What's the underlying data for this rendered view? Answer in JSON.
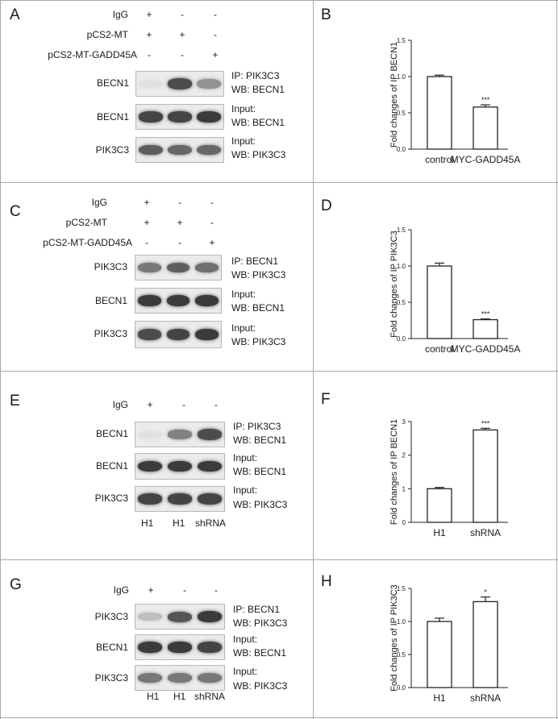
{
  "panels": [
    {
      "letter": "A",
      "conditions": [
        {
          "label": "IgG",
          "signs": [
            "+",
            "-",
            "-"
          ]
        },
        {
          "label": "pCS2-MT",
          "signs": [
            "+",
            "+",
            "-"
          ]
        },
        {
          "label": "pCS2-MT-GADD45A",
          "signs": [
            "-",
            "-",
            "+"
          ]
        }
      ],
      "lane_labels": [],
      "blots": [
        {
          "protein": "BECN1",
          "note1": "IP: PIK3C3",
          "note2": "WB: BECN1",
          "bands": [
            0.0,
            0.85,
            0.45
          ]
        },
        {
          "protein": "BECN1",
          "note1": "Input:",
          "note2": "WB: BECN1",
          "bands": [
            0.9,
            0.9,
            0.95
          ]
        },
        {
          "protein": "PIK3C3",
          "note1": "Input:",
          "note2": "WB: PIK3C3",
          "bands": [
            0.75,
            0.7,
            0.7
          ]
        }
      ]
    },
    {
      "letter": "C",
      "conditions": [
        {
          "label": "IgG",
          "signs": [
            "+",
            "-",
            "-"
          ]
        },
        {
          "label": "pCS2-MT",
          "signs": [
            "+",
            "+",
            "-"
          ]
        },
        {
          "label": "pCS2-MT-GADD45A",
          "signs": [
            "-",
            "-",
            "+"
          ]
        }
      ],
      "lane_labels": [],
      "blots": [
        {
          "protein": "PIK3C3",
          "note1": "IP: BECN1",
          "note2": "WB: PIK3C3",
          "bands": [
            0.6,
            0.75,
            0.65
          ]
        },
        {
          "protein": "BECN1",
          "note1": "Input:",
          "note2": "WB: BECN1",
          "bands": [
            0.95,
            0.95,
            0.95
          ]
        },
        {
          "protein": "PIK3C3",
          "note1": "Input:",
          "note2": "WB: PIK3C3",
          "bands": [
            0.85,
            0.9,
            0.95
          ]
        }
      ]
    },
    {
      "letter": "E",
      "conditions": [
        {
          "label": "IgG",
          "signs": [
            "+",
            "-",
            "-"
          ]
        }
      ],
      "lane_labels": [
        "H1",
        "H1",
        "shRNA"
      ],
      "blots": [
        {
          "protein": "BECN1",
          "note1": "IP: PIK3C3",
          "note2": "WB: BECN1",
          "bands": [
            0.0,
            0.55,
            0.85
          ]
        },
        {
          "protein": "BECN1",
          "note1": "Input:",
          "note2": "WB: BECN1",
          "bands": [
            0.95,
            0.95,
            0.95
          ]
        },
        {
          "protein": "PIK3C3",
          "note1": "Input:",
          "note2": "WB: PIK3C3",
          "bands": [
            0.9,
            0.9,
            0.9
          ]
        }
      ]
    },
    {
      "letter": "G",
      "conditions": [
        {
          "label": "IgG",
          "signs": [
            "+",
            "-",
            "-"
          ]
        }
      ],
      "lane_labels": [
        "H1",
        "H1",
        "shRNA"
      ],
      "blots": [
        {
          "protein": "PIK3C3",
          "note1": "IP: BECN1",
          "note2": "WB: PIK3C3",
          "bands": [
            0.2,
            0.8,
            0.95
          ]
        },
        {
          "protein": "BECN1",
          "note1": "Input:",
          "note2": "WB: BECN1",
          "bands": [
            0.95,
            0.95,
            0.9
          ]
        },
        {
          "protein": "PIK3C3",
          "note1": "Input:",
          "note2": "WB: PIK3C3",
          "bands": [
            0.6,
            0.6,
            0.6
          ]
        }
      ]
    }
  ],
  "chart_data": [
    {
      "letter": "B",
      "type": "bar",
      "title": "",
      "xlabel": "",
      "ylabel": "Fold changes of IP BECN1",
      "categories": [
        "control",
        "MYC-GADD45A"
      ],
      "values": [
        1.0,
        0.58
      ],
      "errors": [
        0.02,
        0.03
      ],
      "annotations": [
        "",
        "***"
      ],
      "ylim": [
        0,
        1.5
      ],
      "yticks": [
        "0.0",
        "0.5",
        "1.0",
        "1.5"
      ],
      "tick_values": [
        0,
        0.5,
        1.0,
        1.5
      ],
      "grid": false
    },
    {
      "letter": "D",
      "type": "bar",
      "title": "",
      "xlabel": "",
      "ylabel": "Fold changes of IP PIK3C3",
      "categories": [
        "control",
        "MYC-GADD45A"
      ],
      "values": [
        1.0,
        0.26
      ],
      "errors": [
        0.04,
        0.01
      ],
      "annotations": [
        "",
        "***"
      ],
      "ylim": [
        0,
        1.5
      ],
      "yticks": [
        "0.0",
        "0.5",
        "1.0",
        "1.5"
      ],
      "tick_values": [
        0,
        0.5,
        1.0,
        1.5
      ],
      "grid": false
    },
    {
      "letter": "F",
      "type": "bar",
      "title": "",
      "xlabel": "",
      "ylabel": "Fold changes of IP BECN1",
      "categories": [
        "H1",
        "shRNA"
      ],
      "values": [
        1.0,
        2.75
      ],
      "errors": [
        0.04,
        0.05
      ],
      "annotations": [
        "",
        "***"
      ],
      "ylim": [
        0,
        3
      ],
      "yticks": [
        "0",
        "1",
        "2",
        "3"
      ],
      "tick_values": [
        0,
        1,
        2,
        3
      ],
      "grid": false
    },
    {
      "letter": "H",
      "type": "bar",
      "title": "",
      "xlabel": "",
      "ylabel": "Fold changes of IP PIK3C3",
      "categories": [
        "H1",
        "shRNA"
      ],
      "values": [
        1.0,
        1.3
      ],
      "errors": [
        0.05,
        0.07
      ],
      "annotations": [
        "",
        "*"
      ],
      "ylim": [
        0,
        1.5
      ],
      "yticks": [
        "0.0",
        "0.5",
        "1.0",
        "1.5"
      ],
      "tick_values": [
        0,
        0.5,
        1.0,
        1.5
      ],
      "grid": false
    }
  ]
}
